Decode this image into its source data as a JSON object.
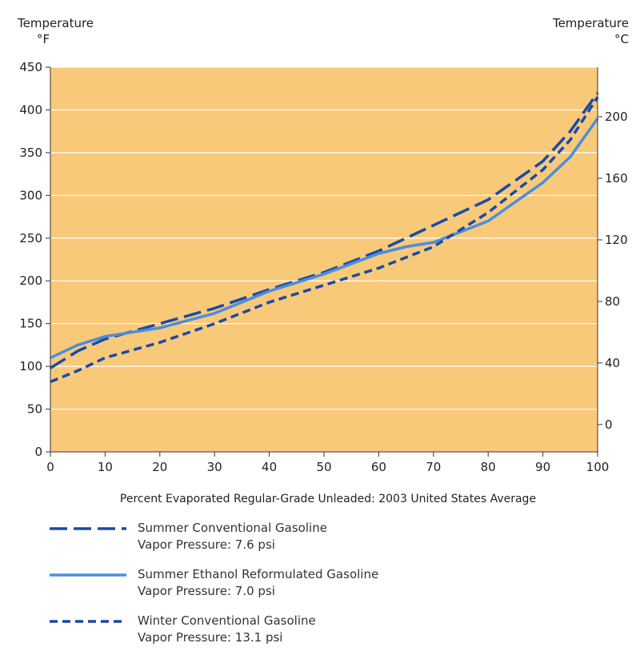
{
  "chart_data": {
    "type": "line",
    "title": "",
    "xlabel": "Percent Evaporated Regular-Grade Unleaded: 2003 United States Average",
    "ylabel_left": "Temperature °F",
    "ylabel_left_title": "Temperature",
    "ylabel_left_unit": "°F",
    "ylabel_right_title": "Temperature",
    "ylabel_right_unit": "°C",
    "xlim": [
      0,
      100
    ],
    "ylim": [
      0,
      450
    ],
    "xticks": [
      0,
      10,
      20,
      30,
      40,
      50,
      60,
      70,
      80,
      90,
      100
    ],
    "yticks": [
      0,
      50,
      100,
      150,
      200,
      250,
      300,
      350,
      400,
      450
    ],
    "yticks_right_c": [
      0,
      40,
      80,
      120,
      160,
      200
    ],
    "grid": true,
    "background": "#f9c97a",
    "series": [
      {
        "name": "Summer Conventional Gasoline",
        "detail": "Vapor Pressure: 7.6 psi",
        "style": "long-dash",
        "color": "#1a4aa6",
        "x": [
          0,
          5,
          10,
          20,
          30,
          40,
          50,
          60,
          70,
          80,
          90,
          95,
          100
        ],
        "values": [
          98,
          118,
          132,
          150,
          168,
          190,
          210,
          235,
          265,
          295,
          340,
          375,
          420
        ]
      },
      {
        "name": "Summer Ethanol Reformulated Gasoline",
        "detail": "Vapor Pressure: 7.0 psi",
        "style": "solid",
        "color": "#4a8fdc",
        "x": [
          0,
          5,
          10,
          20,
          30,
          40,
          50,
          60,
          65,
          70,
          80,
          90,
          95,
          100
        ],
        "values": [
          110,
          125,
          135,
          145,
          162,
          188,
          208,
          232,
          240,
          245,
          270,
          315,
          345,
          390
        ]
      },
      {
        "name": "Winter Conventional Gasoline",
        "detail": "Vapor Pressure: 13.1 psi",
        "style": "short-dash",
        "color": "#1a4aa6",
        "x": [
          0,
          5,
          10,
          20,
          30,
          40,
          50,
          60,
          70,
          80,
          90,
          95,
          100
        ],
        "values": [
          82,
          95,
          110,
          128,
          150,
          175,
          195,
          215,
          240,
          280,
          330,
          365,
          415
        ]
      }
    ]
  }
}
